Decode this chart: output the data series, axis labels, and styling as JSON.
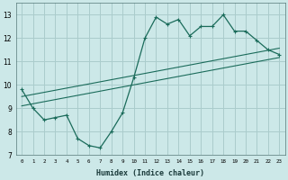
{
  "xlabel": "Humidex (Indice chaleur)",
  "ylabel": "",
  "bg_color": "#cce8e8",
  "grid_color": "#aacccc",
  "line_color": "#1a6b5a",
  "x_data": [
    0,
    1,
    2,
    3,
    4,
    5,
    6,
    7,
    8,
    9,
    10,
    11,
    12,
    13,
    14,
    15,
    16,
    17,
    18,
    19,
    20,
    21,
    22,
    23
  ],
  "y_main": [
    9.8,
    9.0,
    8.5,
    8.6,
    8.7,
    7.7,
    7.4,
    7.3,
    8.0,
    8.8,
    10.3,
    12.0,
    12.9,
    12.6,
    12.8,
    12.1,
    12.5,
    12.5,
    13.0,
    12.3,
    12.3,
    11.9,
    11.5,
    11.3
  ],
  "y_trend1": [
    9.5,
    9.59,
    9.68,
    9.77,
    9.86,
    9.95,
    10.04,
    10.13,
    10.22,
    10.31,
    10.4,
    10.49,
    10.58,
    10.67,
    10.76,
    10.85,
    10.94,
    11.03,
    11.12,
    11.21,
    11.3,
    11.39,
    11.48,
    11.57
  ],
  "y_trend2": [
    9.1,
    9.19,
    9.28,
    9.37,
    9.46,
    9.55,
    9.64,
    9.73,
    9.82,
    9.91,
    10.0,
    10.09,
    10.18,
    10.27,
    10.36,
    10.45,
    10.54,
    10.63,
    10.72,
    10.81,
    10.9,
    10.99,
    11.08,
    11.17
  ],
  "ylim": [
    7,
    13.5
  ],
  "xlim": [
    -0.5,
    23.5
  ],
  "yticks": [
    7,
    8,
    9,
    10,
    11,
    12,
    13
  ],
  "xtick_labels": [
    "0",
    "1",
    "2",
    "3",
    "4",
    "5",
    "6",
    "7",
    "8",
    "9",
    "10",
    "11",
    "12",
    "13",
    "14",
    "15",
    "16",
    "17",
    "18",
    "19",
    "20",
    "21",
    "22",
    "23"
  ]
}
